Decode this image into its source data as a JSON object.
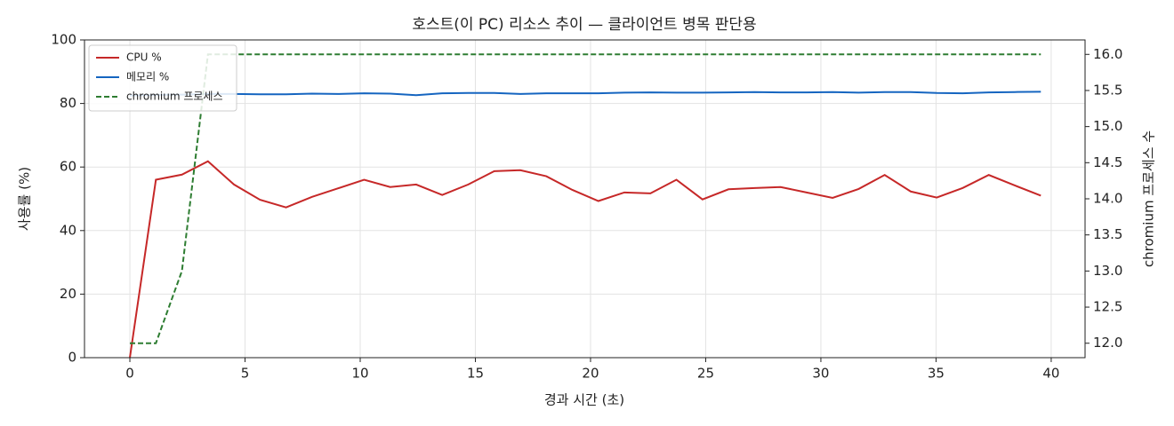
{
  "chart_data": {
    "type": "line",
    "title": "호스트(이 PC) 리소스 추이 — 클라이언트 병목 판단용",
    "xlabel": "경과 시간 (초)",
    "ylabel": "사용률 (%)",
    "y2label": "chromium 프로세스 수",
    "x": [
      0,
      1.13,
      2.26,
      3.39,
      4.52,
      5.65,
      6.78,
      7.91,
      9.04,
      10.17,
      11.3,
      12.43,
      13.56,
      14.69,
      15.82,
      16.95,
      18.08,
      19.21,
      20.34,
      21.47,
      22.6,
      23.73,
      24.86,
      25.99,
      27.12,
      28.25,
      29.38,
      30.51,
      31.64,
      32.77,
      33.9,
      35.03,
      36.16,
      37.29,
      38.42,
      39.55
    ],
    "series": [
      {
        "name": "CPU %",
        "color": "#c62828",
        "linestyle": "solid",
        "axis": "y",
        "values": [
          0,
          56,
          57.6,
          61.8,
          54.5,
          49.7,
          47.3,
          50.6,
          53.3,
          56,
          53.7,
          54.5,
          51.2,
          54.5,
          58.7,
          59,
          57.1,
          52.8,
          49.3,
          52,
          51.7,
          56,
          49.8,
          53,
          53.4,
          53.7,
          52,
          50.3,
          53.1,
          57.5,
          52.3,
          50.4,
          53.4,
          57.5,
          54.2,
          51
        ]
      },
      {
        "name": "메모리 %",
        "color": "#1565c0",
        "linestyle": "solid",
        "axis": "y",
        "values": [
          82.5,
          82.7,
          82.8,
          83.0,
          83.0,
          82.9,
          82.9,
          83.1,
          83.0,
          83.2,
          83.1,
          82.6,
          83.2,
          83.3,
          83.3,
          83.0,
          83.2,
          83.2,
          83.2,
          83.4,
          83.5,
          83.4,
          83.4,
          83.5,
          83.6,
          83.5,
          83.5,
          83.6,
          83.4,
          83.6,
          83.6,
          83.3,
          83.2,
          83.5,
          83.6,
          83.7
        ]
      },
      {
        "name": "chromium 프로세스",
        "color": "#2e7d32",
        "linestyle": "dashed",
        "axis": "y2",
        "values": [
          12,
          12,
          13,
          16,
          16,
          16,
          16,
          16,
          16,
          16,
          16,
          16,
          16,
          16,
          16,
          16,
          16,
          16,
          16,
          16,
          16,
          16,
          16,
          16,
          16,
          16,
          16,
          16,
          16,
          16,
          16,
          16,
          16,
          16,
          16,
          16
        ]
      }
    ],
    "xlim": [
      -1.97,
      41.47
    ],
    "xticks": [
      0,
      5,
      10,
      15,
      20,
      25,
      30,
      35,
      40
    ],
    "ylim": [
      0,
      100
    ],
    "yticks": [
      0,
      20,
      40,
      60,
      80,
      100
    ],
    "y2lim": [
      11.8,
      16.2
    ],
    "y2ticks": [
      {
        "value": 12,
        "label": "12.0"
      },
      {
        "value": 12.5,
        "label": "12.5"
      },
      {
        "value": 13,
        "label": "13.0"
      },
      {
        "value": 13.5,
        "label": "13.5"
      },
      {
        "value": 14,
        "label": "14.0"
      },
      {
        "value": 14.5,
        "label": "14.5"
      },
      {
        "value": 15,
        "label": "15.0"
      },
      {
        "value": 15.5,
        "label": "15.5"
      },
      {
        "value": 16,
        "label": "16.0"
      }
    ],
    "grid": true,
    "legend": "upper left"
  }
}
